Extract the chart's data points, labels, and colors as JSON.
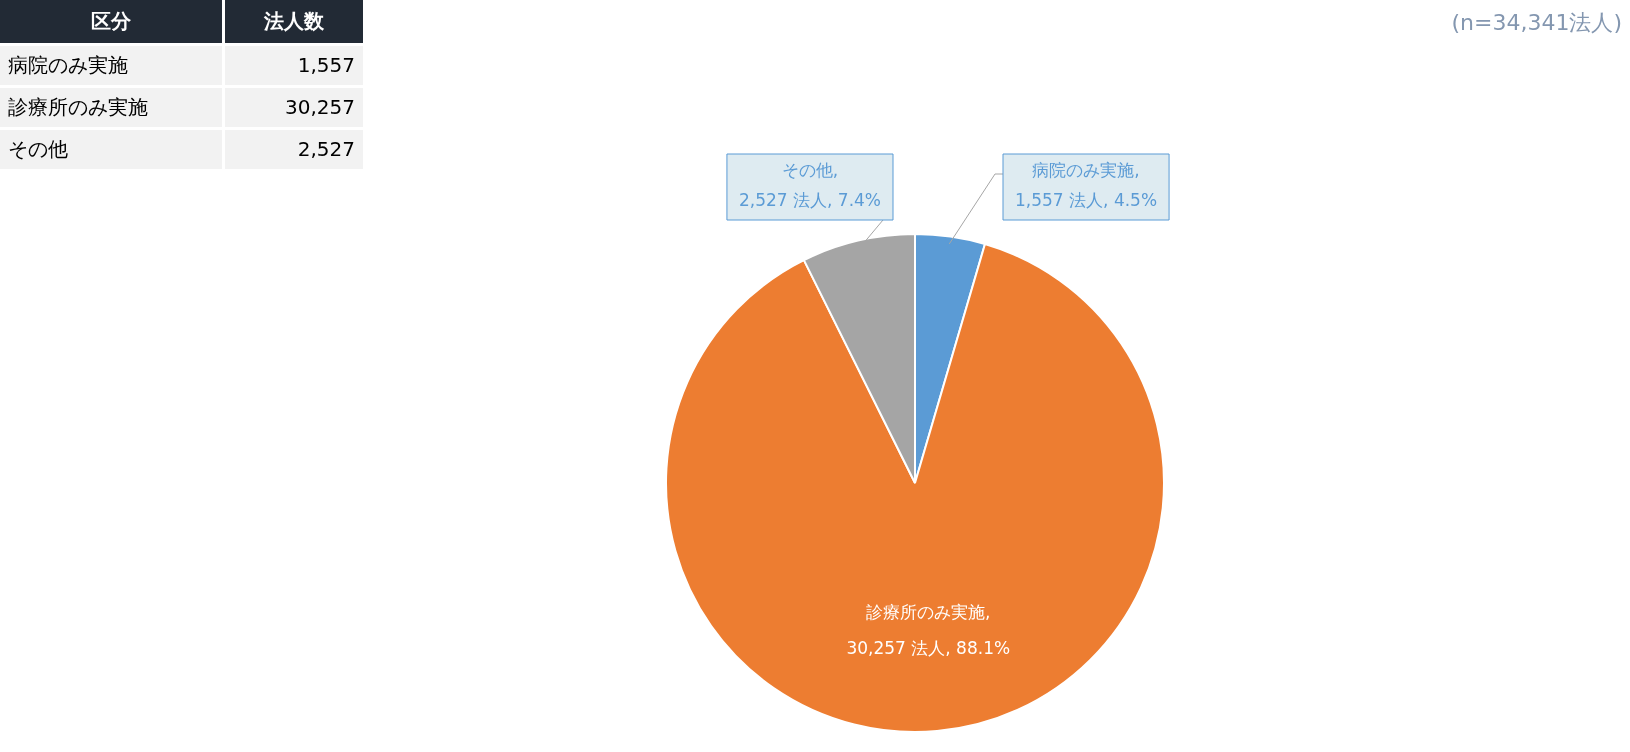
{
  "chart_data": [
    {
      "type": "other",
      "annotations": [
        "区分",
        "法人数",
        "病院のみ実施",
        "1,557",
        "診療所のみ実施",
        "30,257",
        "その他",
        "2,527"
      ]
    },
    {
      "type": "pie",
      "categories": [
        "病院のみ実施",
        "診療所のみ実施",
        "その他"
      ],
      "values": [
        1557,
        30257,
        2527
      ],
      "colors": [
        "#5b9bd5",
        "#ed7d31",
        "#a5a5a5"
      ],
      "value_labels": [
        ",\n1,557 法人, 4.5%",
        ",\n30,257 法人, 88.1%",
        ",\n2,527 法人, 7.4%"
      ],
      "legend": false,
      "annotations": [
        "(n=34,341法人)"
      ]
    }
  ]
}
